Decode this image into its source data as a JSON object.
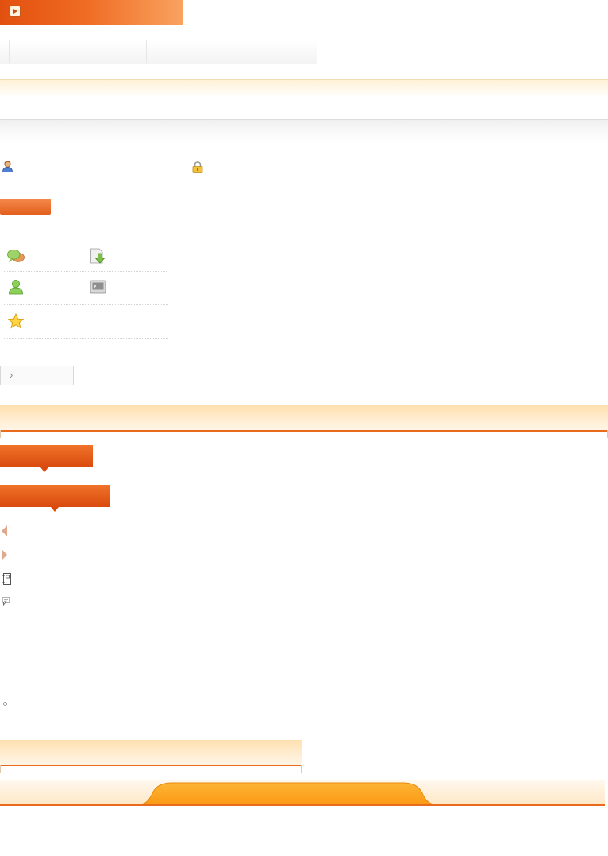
{
  "icons": {
    "banner": "play-icon",
    "user": "user-icon",
    "lock": "lock-icon",
    "grid": [
      "chat-bubbles-icon",
      "download-icon",
      "friends-icon",
      "terminal-icon",
      "star-icon"
    ],
    "more": "chevron-right-icon",
    "prev": "triangle-left-icon",
    "next": "triangle-right-icon",
    "notebook": "notebook-icon",
    "comment": "comment-icon"
  },
  "more_button": {
    "label": "›"
  },
  "colors": {
    "accent": "#e86a1a",
    "banner_start": "#e2500f",
    "banner_end": "#f9a25f",
    "band": "#fff1d8",
    "footer_tab": "#fba521"
  }
}
